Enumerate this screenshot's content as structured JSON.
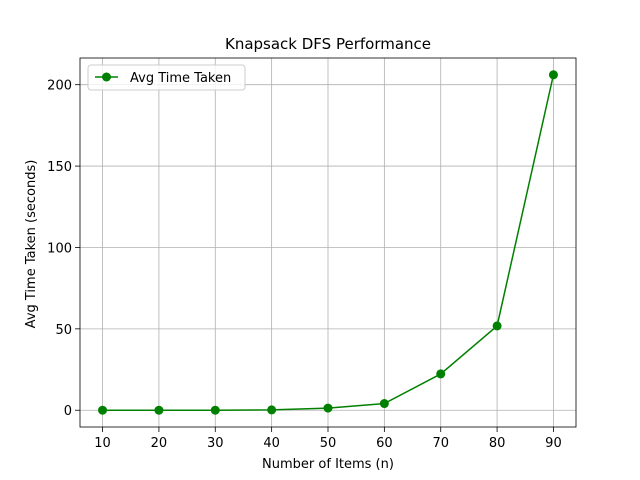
{
  "chart_data": {
    "type": "line",
    "title": "Knapsack DFS Performance",
    "xlabel": "Number of Items (n)",
    "ylabel": "Avg Time Taken (seconds)",
    "x": [
      10,
      20,
      30,
      40,
      50,
      60,
      70,
      80,
      90
    ],
    "xticks": [
      10,
      20,
      30,
      40,
      50,
      60,
      70,
      80,
      90
    ],
    "yticks": [
      0,
      50,
      100,
      150,
      200
    ],
    "xlim": [
      6,
      94
    ],
    "ylim": [
      -10.3,
      216.4
    ],
    "grid": true,
    "legend": "top-left",
    "series": [
      {
        "name": "Avg Time Taken",
        "color": "#008000",
        "marker": "circle",
        "values": [
          0.0,
          0.0,
          0.0,
          0.2,
          1.3,
          4.1,
          22.3,
          51.8,
          206.1
        ]
      }
    ]
  }
}
